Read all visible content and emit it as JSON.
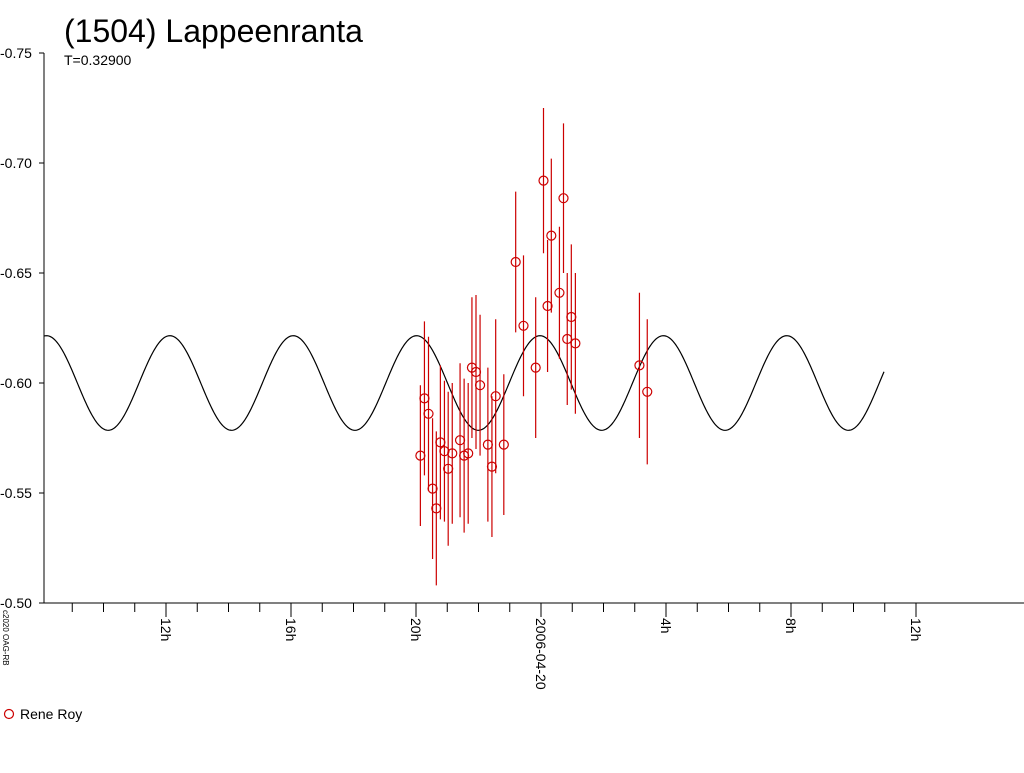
{
  "chart_data": {
    "type": "scatter",
    "title": "(1504) Lappeenranta",
    "subtitle": "T=0.32900",
    "copyright": "c2020 OAG-RB",
    "xlabel": "",
    "ylabel": "",
    "ylim": [
      -0.75,
      -0.5
    ],
    "y_inverted": true,
    "y_ticks": [
      {
        "value": -0.75,
        "label": "-0.75"
      },
      {
        "value": -0.7,
        "label": "-0.70"
      },
      {
        "value": -0.65,
        "label": "-0.65"
      },
      {
        "value": -0.6,
        "label": "-0.60"
      },
      {
        "value": -0.55,
        "label": "-0.55"
      },
      {
        "value": -0.5,
        "label": "-0.50"
      }
    ],
    "x_range_hours": [
      -24.0,
      11.0
    ],
    "x_major_ticks": [
      {
        "hour": -12,
        "label": "12h"
      },
      {
        "hour": -8,
        "label": "16h"
      },
      {
        "hour": -4,
        "label": "20h"
      },
      {
        "hour": 0,
        "label": "2006-04-20"
      },
      {
        "hour": 4,
        "label": "4h"
      },
      {
        "hour": 8,
        "label": "8h"
      },
      {
        "hour": 12,
        "label": "12h"
      }
    ],
    "x_minor_step_hours": 1,
    "model_curve": {
      "mean": -0.6,
      "amplitude": 0.0215,
      "period_hours": 3.948,
      "peak_hour": -0.032,
      "color": "#000000"
    },
    "series": [
      {
        "name": "Rene Roy",
        "color": "#cc0000",
        "marker": "circle",
        "points": [
          {
            "x": -3.86,
            "y": -0.567,
            "err": 0.032
          },
          {
            "x": -3.73,
            "y": -0.593,
            "err": 0.035
          },
          {
            "x": -3.6,
            "y": -0.586,
            "err": 0.035
          },
          {
            "x": -3.47,
            "y": -0.552,
            "err": 0.032
          },
          {
            "x": -3.35,
            "y": -0.543,
            "err": 0.035
          },
          {
            "x": -3.22,
            "y": -0.573,
            "err": 0.035
          },
          {
            "x": -3.09,
            "y": -0.569,
            "err": 0.032
          },
          {
            "x": -2.97,
            "y": -0.561,
            "err": 0.035
          },
          {
            "x": -2.84,
            "y": -0.568,
            "err": 0.032
          },
          {
            "x": -2.59,
            "y": -0.574,
            "err": 0.035
          },
          {
            "x": -2.46,
            "y": -0.567,
            "err": 0.035
          },
          {
            "x": -2.33,
            "y": -0.568,
            "err": 0.032
          },
          {
            "x": -2.21,
            "y": -0.607,
            "err": 0.032
          },
          {
            "x": -2.08,
            "y": -0.605,
            "err": 0.035
          },
          {
            "x": -1.95,
            "y": -0.599,
            "err": 0.032
          },
          {
            "x": -1.7,
            "y": -0.572,
            "err": 0.035
          },
          {
            "x": -1.57,
            "y": -0.562,
            "err": 0.032
          },
          {
            "x": -1.45,
            "y": -0.594,
            "err": 0.035
          },
          {
            "x": -1.19,
            "y": -0.572,
            "err": 0.032
          },
          {
            "x": -0.81,
            "y": -0.655,
            "err": 0.032
          },
          {
            "x": -0.56,
            "y": -0.626,
            "err": 0.032
          },
          {
            "x": -0.17,
            "y": -0.607,
            "err": 0.032
          },
          {
            "x": 0.08,
            "y": -0.692,
            "err": 0.033
          },
          {
            "x": 0.21,
            "y": -0.635,
            "err": 0.03
          },
          {
            "x": 0.33,
            "y": -0.667,
            "err": 0.035
          },
          {
            "x": 0.59,
            "y": -0.641,
            "err": 0.03
          },
          {
            "x": 0.72,
            "y": -0.684,
            "err": 0.034
          },
          {
            "x": 0.84,
            "y": -0.62,
            "err": 0.03
          },
          {
            "x": 0.97,
            "y": -0.63,
            "err": 0.033
          },
          {
            "x": 1.1,
            "y": -0.618,
            "err": 0.032
          },
          {
            "x": 3.15,
            "y": -0.608,
            "err": 0.033
          },
          {
            "x": 3.4,
            "y": -0.596,
            "err": 0.033
          }
        ]
      }
    ],
    "legend": [
      {
        "label": "Rene Roy",
        "marker": "circle",
        "color": "#cc0000"
      }
    ],
    "legend_position": "bottom-left",
    "grid": false
  }
}
